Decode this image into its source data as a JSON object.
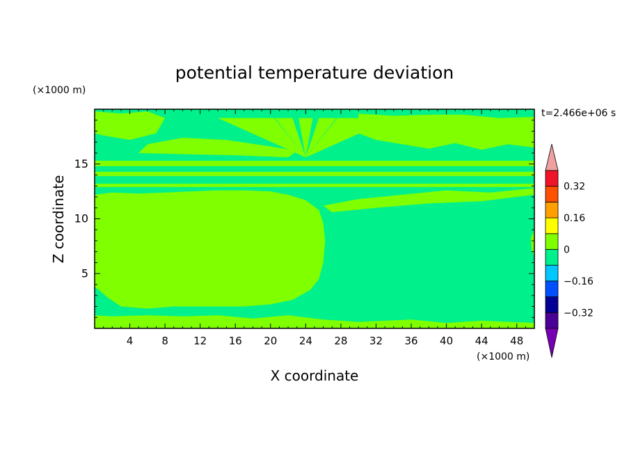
{
  "chart_data": {
    "type": "heatmap",
    "title": "potential temperature deviation",
    "xlabel": "X coordinate",
    "ylabel": "Z coordinate",
    "x_unit": "(×1000 m)",
    "y_unit": "(×1000 m)",
    "time_label": "t=2.466e+06 s",
    "xlim": [
      0,
      50
    ],
    "ylim": [
      0,
      20
    ],
    "x_ticks": [
      4,
      8,
      12,
      16,
      20,
      24,
      28,
      32,
      36,
      40,
      44,
      48
    ],
    "y_ticks": [
      5,
      10,
      15
    ],
    "colorbar": {
      "levels": [
        -0.4,
        -0.32,
        -0.24,
        -0.16,
        -0.08,
        0,
        0.08,
        0.16,
        0.24,
        0.32,
        0.4
      ],
      "labeled_levels": [
        -0.32,
        -0.16,
        0,
        0.16,
        0.32
      ],
      "tick_labels": [
        "0.32",
        "0.16",
        "0",
        "−0.16",
        "−0.32"
      ],
      "colors_bottom_to_top": [
        "#4b0096",
        "#000096",
        "#0050ff",
        "#00c8ff",
        "#00f08c",
        "#80ff00",
        "#ffff00",
        "#ffa000",
        "#ff5000",
        "#f01428"
      ],
      "over_color": "#f0a0a0",
      "under_color": "#7800b4"
    },
    "field_regions": [
      {
        "description": "lower-left warm dome",
        "x_range": [
          0,
          26
        ],
        "z_range": [
          0,
          12
        ],
        "value_band": [
          0,
          0.08
        ],
        "color": "#80ff00"
      },
      {
        "description": "lower-right",
        "x_range": [
          26,
          50
        ],
        "z_range": [
          0,
          12
        ],
        "value_band": [
          -0.08,
          0
        ],
        "color": "#00f08c"
      },
      {
        "description": "upper layer with banding",
        "x_range": [
          0,
          50
        ],
        "z_range": [
          12,
          20
        ],
        "value_band": [
          -0.08,
          0.08
        ]
      }
    ]
  }
}
